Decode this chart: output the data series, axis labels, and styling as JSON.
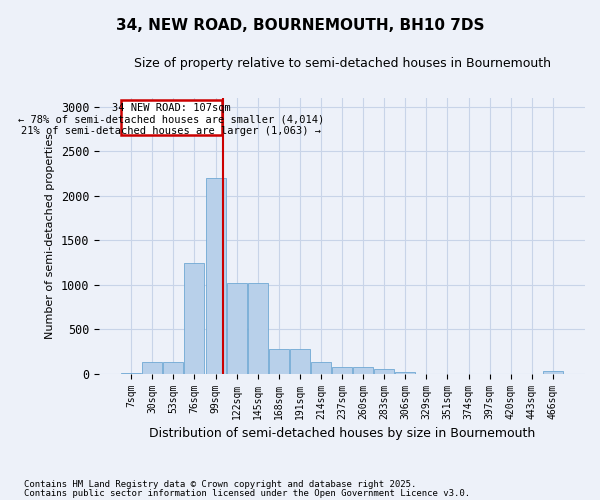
{
  "title": "34, NEW ROAD, BOURNEMOUTH, BH10 7DS",
  "subtitle": "Size of property relative to semi-detached houses in Bournemouth",
  "xlabel": "Distribution of semi-detached houses by size in Bournemouth",
  "ylabel": "Number of semi-detached properties",
  "footer_line1": "Contains HM Land Registry data © Crown copyright and database right 2025.",
  "footer_line2": "Contains public sector information licensed under the Open Government Licence v3.0.",
  "categories": [
    "7sqm",
    "30sqm",
    "53sqm",
    "76sqm",
    "99sqm",
    "122sqm",
    "145sqm",
    "168sqm",
    "191sqm",
    "214sqm",
    "237sqm",
    "260sqm",
    "283sqm",
    "306sqm",
    "329sqm",
    "351sqm",
    "374sqm",
    "397sqm",
    "420sqm",
    "443sqm",
    "466sqm"
  ],
  "values": [
    10,
    130,
    130,
    1250,
    2200,
    1020,
    1020,
    280,
    280,
    130,
    75,
    70,
    50,
    20,
    0,
    0,
    0,
    0,
    0,
    0,
    30
  ],
  "bar_color": "#b8d0ea",
  "bar_edge_color": "#6fa8d4",
  "grid_color": "#c8d4e8",
  "annotation_box_color": "#cc0000",
  "property_line_color": "#cc0000",
  "property_label": "34 NEW ROAD: 107sqm",
  "pct_smaller": 78,
  "n_smaller": "4,014",
  "pct_larger": 21,
  "n_larger": "1,063",
  "ylim": [
    0,
    3100
  ],
  "yticks": [
    0,
    500,
    1000,
    1500,
    2000,
    2500,
    3000
  ],
  "background_color": "#edf1f9",
  "plot_background": "#edf1f9",
  "prop_bin_index": 4,
  "prop_bin_low": 99,
  "prop_bin_high": 122,
  "prop_value": 107
}
